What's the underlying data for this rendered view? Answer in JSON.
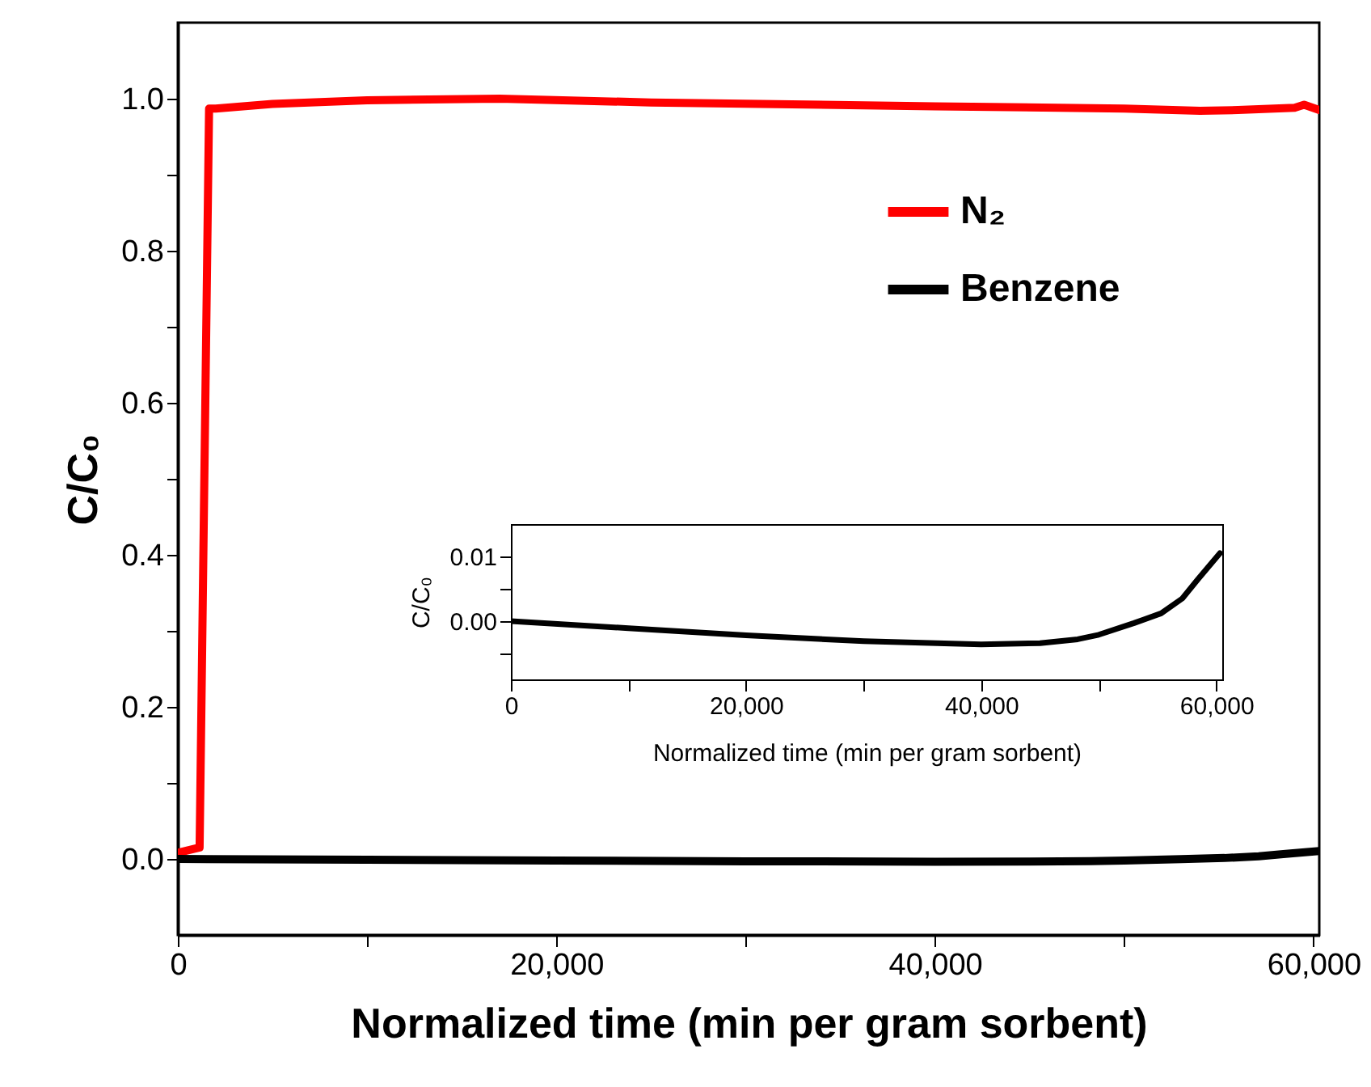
{
  "chart_data": [
    {
      "type": "line",
      "xlabel": "Normalized time (min per gram sorbent)",
      "ylabel": "C/C₀",
      "xlim": [
        0,
        60300
      ],
      "ylim": [
        -0.1,
        1.1
      ],
      "xticks": [
        {
          "value": 0,
          "label": "0"
        },
        {
          "value": 10000,
          "label": null
        },
        {
          "value": 20000,
          "label": "20,000"
        },
        {
          "value": 30000,
          "label": null
        },
        {
          "value": 40000,
          "label": "40,000"
        },
        {
          "value": 50000,
          "label": null
        },
        {
          "value": 60000,
          "label": "60,000"
        }
      ],
      "yticks": [
        {
          "value": 0,
          "label": "0.0"
        },
        {
          "value": 0.1,
          "label": null
        },
        {
          "value": 0.2,
          "label": "0.2"
        },
        {
          "value": 0.3,
          "label": null
        },
        {
          "value": 0.4,
          "label": "0.4"
        },
        {
          "value": 0.5,
          "label": null
        },
        {
          "value": 0.6,
          "label": "0.6"
        },
        {
          "value": 0.7,
          "label": null
        },
        {
          "value": 0.8,
          "label": "0.8"
        },
        {
          "value": 0.9,
          "label": null
        },
        {
          "value": 1,
          "label": "1.0"
        }
      ],
      "grid": false,
      "legend": "top right",
      "line_style": "solid",
      "series": [
        {
          "name": "N₂",
          "color": "#ff0000",
          "x": [
            0,
            1150,
            1650,
            2000,
            5000,
            10000,
            17000,
            25000,
            40000,
            50000,
            54000,
            56000,
            59000,
            59500,
            60300
          ],
          "values": [
            0.008,
            0.015,
            0.987,
            0.987,
            0.993,
            0.998,
            1.0,
            0.995,
            0.99,
            0.987,
            0.984,
            0.985,
            0.988,
            0.992,
            0.985
          ]
        },
        {
          "name": "Benzene",
          "color": "#000000",
          "x": [
            0,
            10000,
            20000,
            30000,
            40000,
            45000,
            48200,
            50000,
            53000,
            55300,
            57100,
            58400,
            60300
          ],
          "values": [
            0,
            -0.0011,
            -0.0022,
            -0.0031,
            -0.0036,
            -0.0034,
            -0.0028,
            -0.0021,
            -0.0003,
            0.0012,
            0.0035,
            0.0064,
            0.0105
          ]
        }
      ]
    },
    {
      "type": "line",
      "xlabel": "Normalized time (min per gram sorbent)",
      "ylabel": "C/C₀",
      "xlim": [
        0,
        60500
      ],
      "ylim": [
        -0.009,
        0.015
      ],
      "xticks": [
        {
          "value": 0,
          "label": "0"
        },
        {
          "value": 10000,
          "label": null
        },
        {
          "value": 20000,
          "label": "20,000"
        },
        {
          "value": 30000,
          "label": null
        },
        {
          "value": 40000,
          "label": "40,000"
        },
        {
          "value": 50000,
          "label": null
        },
        {
          "value": 60000,
          "label": "60,000"
        }
      ],
      "yticks": [
        {
          "value": -0.005,
          "label": null
        },
        {
          "value": 0,
          "label": "0.00"
        },
        {
          "value": 0.005,
          "label": null
        },
        {
          "value": 0.01,
          "label": "0.01"
        }
      ],
      "grid": false,
      "line_style": "solid",
      "series": [
        {
          "color": "#000000",
          "x": [
            0,
            10000,
            20000,
            30000,
            40000,
            45000,
            48200,
            50000,
            53000,
            55300,
            57100,
            58400,
            60300
          ],
          "values": [
            0,
            -0.0011,
            -0.0022,
            -0.0031,
            -0.0036,
            -0.0034,
            -0.0028,
            -0.0021,
            -0.0003,
            0.0012,
            0.0035,
            0.0064,
            0.0105
          ]
        }
      ]
    }
  ]
}
